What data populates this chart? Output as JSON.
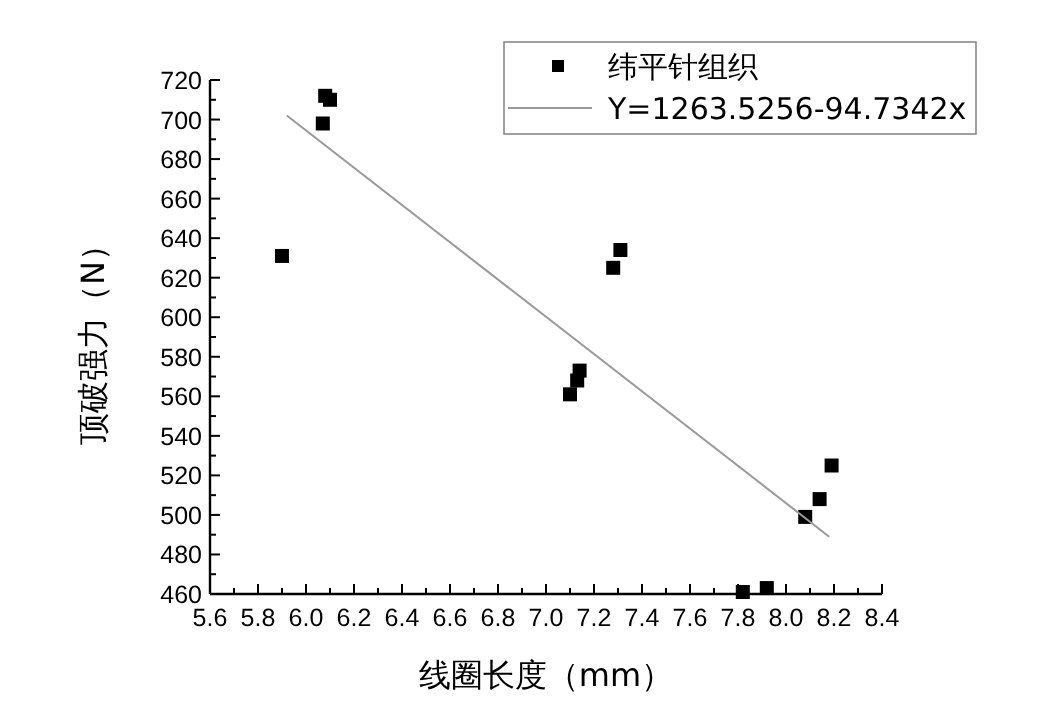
{
  "chart_data": {
    "type": "scatter",
    "xlabel": "线圈长度（mm）",
    "ylabel": "顶破强力（N）",
    "xlim": [
      5.6,
      8.4
    ],
    "ylim": [
      460,
      720
    ],
    "xticks": [
      5.6,
      {
        "value": 5.7,
        "label": null
      },
      5.8,
      {
        "value": 5.9,
        "label": null
      },
      {
        "value": 6.0,
        "label": "6.0"
      },
      {
        "value": 6.1,
        "label": null
      },
      6.2,
      {
        "value": 6.3,
        "label": null
      },
      6.4,
      {
        "value": 6.5,
        "label": null
      },
      6.6,
      {
        "value": 6.7,
        "label": null
      },
      6.8,
      {
        "value": 6.9,
        "label": null
      },
      {
        "value": 7.0,
        "label": "7.0"
      },
      {
        "value": 7.1,
        "label": null
      },
      7.2,
      {
        "value": 7.3,
        "label": null
      },
      7.4,
      {
        "value": 7.5,
        "label": null
      },
      7.6,
      {
        "value": 7.7,
        "label": null
      },
      7.8,
      {
        "value": 7.9,
        "label": null
      },
      {
        "value": 8.0,
        "label": "8.0"
      },
      {
        "value": 8.1,
        "label": null
      },
      8.2,
      {
        "value": 8.3,
        "label": null
      },
      8.4
    ],
    "yticks": [
      460,
      {
        "value": 470,
        "label": null
      },
      480,
      {
        "value": 490,
        "label": null
      },
      500,
      {
        "value": 510,
        "label": null
      },
      520,
      {
        "value": 530,
        "label": null
      },
      540,
      {
        "value": 550,
        "label": null
      },
      560,
      {
        "value": 570,
        "label": null
      },
      580,
      {
        "value": 590,
        "label": null
      },
      600,
      {
        "value": 610,
        "label": null
      },
      620,
      {
        "value": 630,
        "label": null
      },
      640,
      {
        "value": 650,
        "label": null
      },
      660,
      {
        "value": 670,
        "label": null
      },
      680,
      {
        "value": 690,
        "label": null
      },
      700,
      {
        "value": 710,
        "label": null
      },
      720
    ],
    "legend": "top right",
    "grid": false,
    "series": [
      {
        "name": "纬平针组织",
        "color": "#000000",
        "marker": "square",
        "x": [
          5.9,
          6.07,
          6.08,
          6.1,
          7.1,
          7.13,
          7.14,
          7.28,
          7.31,
          7.82,
          7.92,
          8.08,
          8.14,
          8.19
        ],
        "values": [
          631,
          698,
          712,
          710,
          561,
          568,
          573,
          625,
          634,
          461,
          463,
          499,
          508,
          525
        ]
      },
      {
        "name": "Y=1263.5256-94.7342x",
        "type": "line",
        "color": "#999999",
        "line_style": "solid",
        "marker": "none",
        "x": [
          5.92,
          8.18
        ],
        "values": [
          702,
          489
        ]
      }
    ]
  }
}
